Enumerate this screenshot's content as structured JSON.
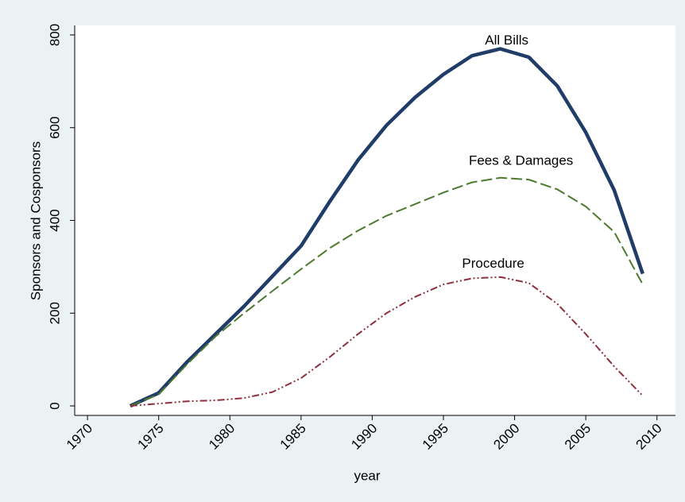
{
  "chart_data": {
    "type": "line",
    "x_label": "year",
    "y_label": "Sponsors and Cosponsors",
    "x": [
      1973,
      1975,
      1977,
      1979,
      1981,
      1983,
      1985,
      1987,
      1989,
      1991,
      1993,
      1995,
      1997,
      1999,
      2001,
      2003,
      2005,
      2007,
      2009
    ],
    "series": [
      {
        "name": "All Bills",
        "color": "#1f3d68",
        "values": [
          0,
          28,
          95,
          155,
          215,
          280,
          345,
          440,
          530,
          605,
          665,
          715,
          755,
          770,
          752,
          690,
          590,
          465,
          285
        ]
      },
      {
        "name": "Fees & Damages",
        "color": "#4d7a2e",
        "values": [
          0,
          25,
          90,
          150,
          200,
          248,
          295,
          340,
          378,
          410,
          435,
          460,
          482,
          492,
          488,
          467,
          430,
          375,
          262
        ]
      },
      {
        "name": "Procedure",
        "color": "#8e2f3e",
        "values": [
          0,
          5,
          10,
          12,
          17,
          30,
          60,
          105,
          155,
          200,
          235,
          262,
          275,
          278,
          265,
          220,
          155,
          85,
          22
        ]
      }
    ],
    "xlim": [
      1969.1,
      2011.3
    ],
    "xticks": [
      1970,
      1975,
      1980,
      1985,
      1990,
      1995,
      2000,
      2005,
      2010
    ],
    "ylim": [
      -20.5,
      820.5
    ],
    "yticks": [
      0,
      200,
      400,
      600,
      800
    ],
    "grid": false
  }
}
